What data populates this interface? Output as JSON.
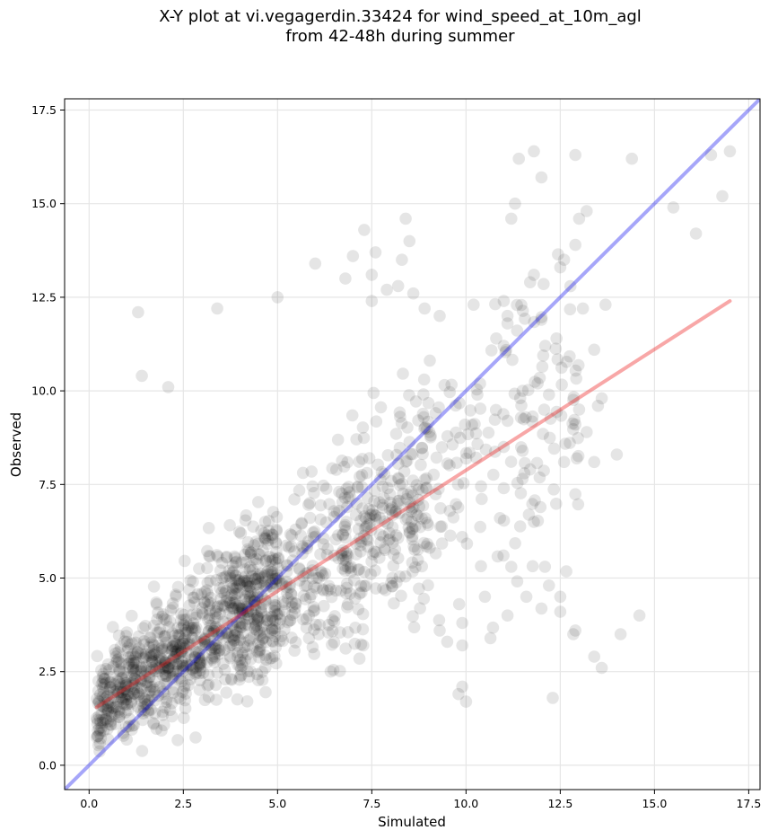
{
  "chart_data": {
    "type": "scatter",
    "title_line1": "X-Y plot at vi.vegagerdin.33424 for wind_speed_at_10m_agl",
    "title_line2": "from 42-48h during summer",
    "xlabel": "Simulated",
    "ylabel": "Observed",
    "xlim": [
      -0.65,
      17.8
    ],
    "ylim": [
      -0.65,
      17.8
    ],
    "xticks": [
      "0.0",
      "2.5",
      "5.0",
      "7.5",
      "10.0",
      "12.5",
      "15.0",
      "17.5"
    ],
    "yticks": [
      "0.0",
      "2.5",
      "5.0",
      "7.5",
      "10.0",
      "12.5",
      "15.0",
      "17.5"
    ],
    "grid": true,
    "colors": {
      "points": "#000000",
      "identity_line": "#0000ee",
      "regression_line": "#ee2222"
    },
    "identity_line": {
      "from": [
        -0.65,
        -0.65
      ],
      "to": [
        17.8,
        17.8
      ]
    },
    "regression_line": {
      "from": [
        0.2,
        1.55
      ],
      "to": [
        17.0,
        12.4
      ]
    },
    "outlier_points": [
      [
        1.3,
        12.1
      ],
      [
        1.4,
        10.4
      ],
      [
        2.1,
        10.1
      ],
      [
        3.4,
        12.2
      ],
      [
        5.0,
        12.5
      ],
      [
        6.0,
        13.4
      ],
      [
        6.8,
        13.0
      ],
      [
        7.0,
        13.6
      ],
      [
        7.3,
        14.3
      ],
      [
        7.5,
        12.4
      ],
      [
        7.5,
        13.1
      ],
      [
        7.6,
        13.7
      ],
      [
        8.3,
        13.5
      ],
      [
        8.5,
        14.0
      ],
      [
        8.4,
        14.6
      ],
      [
        8.6,
        12.6
      ],
      [
        7.9,
        12.7
      ],
      [
        8.2,
        12.8
      ],
      [
        8.9,
        12.2
      ],
      [
        9.3,
        12.0
      ],
      [
        10.2,
        12.3
      ],
      [
        10.8,
        11.4
      ],
      [
        11.0,
        11.2
      ],
      [
        11.1,
        11.8
      ],
      [
        11.0,
        12.4
      ],
      [
        11.1,
        12.0
      ],
      [
        11.2,
        14.6
      ],
      [
        11.3,
        15.0
      ],
      [
        11.4,
        16.2
      ],
      [
        11.7,
        12.9
      ],
      [
        11.8,
        13.1
      ],
      [
        11.8,
        16.4
      ],
      [
        12.0,
        15.7
      ],
      [
        12.0,
        11.9
      ],
      [
        12.1,
        11.2
      ],
      [
        12.4,
        11.4
      ],
      [
        12.5,
        13.3
      ],
      [
        12.6,
        13.5
      ],
      [
        12.9,
        16.3
      ],
      [
        12.9,
        13.9
      ],
      [
        13.0,
        14.6
      ],
      [
        13.1,
        12.2
      ],
      [
        13.2,
        14.8
      ],
      [
        13.4,
        11.1
      ],
      [
        13.7,
        12.3
      ],
      [
        14.4,
        16.2
      ],
      [
        15.5,
        14.9
      ],
      [
        16.1,
        14.2
      ],
      [
        16.5,
        16.3
      ],
      [
        16.8,
        15.2
      ],
      [
        17.0,
        16.4
      ],
      [
        12.3,
        1.8
      ],
      [
        12.5,
        4.1
      ],
      [
        12.9,
        3.6
      ],
      [
        13.4,
        2.9
      ],
      [
        13.6,
        2.6
      ],
      [
        14.1,
        3.5
      ],
      [
        14.6,
        4.0
      ],
      [
        12.5,
        4.5
      ],
      [
        12.2,
        4.8
      ],
      [
        11.6,
        4.5
      ],
      [
        11.1,
        4.0
      ],
      [
        10.5,
        4.5
      ],
      [
        9.9,
        2.1
      ],
      [
        10.0,
        1.7
      ],
      [
        9.8,
        1.9
      ],
      [
        9.9,
        3.8
      ],
      [
        9.9,
        3.2
      ],
      [
        9.5,
        3.3
      ],
      [
        9.3,
        3.6
      ],
      [
        14.0,
        8.3
      ],
      [
        13.4,
        8.1
      ],
      [
        13.2,
        8.9
      ],
      [
        13.5,
        9.6
      ],
      [
        13.6,
        9.8
      ],
      [
        12.9,
        9.1
      ],
      [
        13.0,
        9.5
      ],
      [
        12.6,
        8.1
      ],
      [
        12.2,
        9.9
      ],
      [
        11.9,
        10.2
      ],
      [
        11.5,
        10.0
      ],
      [
        11.1,
        9.2
      ],
      [
        11.0,
        8.5
      ],
      [
        11.5,
        8.4
      ],
      [
        11.7,
        7.9
      ],
      [
        10.9,
        6.6
      ],
      [
        11.2,
        5.3
      ],
      [
        11.8,
        6.5
      ],
      [
        11.0,
        7.4
      ],
      [
        10.3,
        9.9
      ]
    ]
  }
}
